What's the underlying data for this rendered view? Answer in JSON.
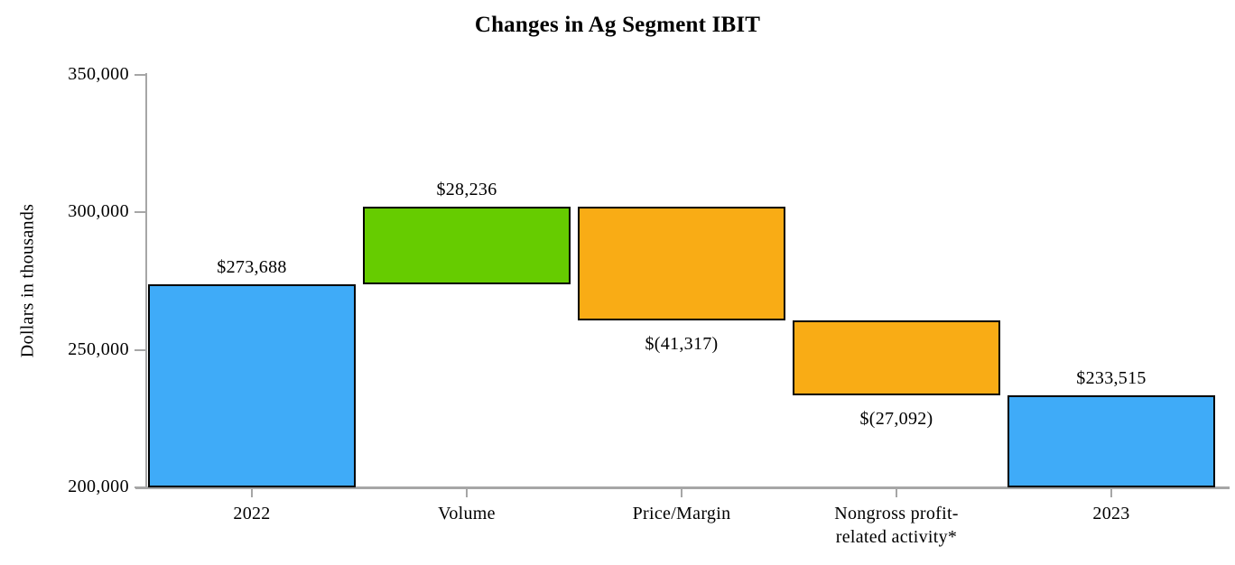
{
  "chart_data": {
    "type": "bar",
    "subtype": "waterfall",
    "title": "Changes in Ag Segment IBIT",
    "ylabel": "Dollars in thousands",
    "ylim": [
      200000,
      350000
    ],
    "yticks": [
      200000,
      250000,
      300000,
      350000
    ],
    "ytick_labels": [
      "200,000",
      "250,000",
      "300,000",
      "350,000"
    ],
    "grid": "off",
    "legend": "none",
    "categories": [
      [
        "2022"
      ],
      [
        "Volume"
      ],
      [
        "Price/Margin"
      ],
      [
        "Nongross profit-",
        "related activity*"
      ],
      [
        "2023"
      ]
    ],
    "bars": [
      {
        "name": "2022",
        "label": "$273,688",
        "value": 273688,
        "from": 200000,
        "to": 273688,
        "color": "blue",
        "label_position": "above"
      },
      {
        "name": "volume",
        "label": "$28,236",
        "value": 28236,
        "from": 273688,
        "to": 301924,
        "color": "green",
        "label_position": "above"
      },
      {
        "name": "price-margin",
        "label": "$(41,317)",
        "value": -41317,
        "from": 301924,
        "to": 260607,
        "color": "orange",
        "label_position": "below"
      },
      {
        "name": "nongross-profit-related-activity",
        "label": "$(27,092)",
        "value": -27092,
        "from": 260607,
        "to": 233515,
        "color": "orange",
        "label_position": "below"
      },
      {
        "name": "2023",
        "label": "$233,515",
        "value": 233515,
        "from": 200000,
        "to": 233515,
        "color": "blue",
        "label_position": "above"
      }
    ],
    "colors": {
      "blue": "#3FABF8",
      "green": "#66CC00",
      "orange": "#F9AC15",
      "axis": "#A6A6A6",
      "bar_border": "#000000",
      "text": "#000000",
      "background": "#FFFFFF"
    }
  }
}
